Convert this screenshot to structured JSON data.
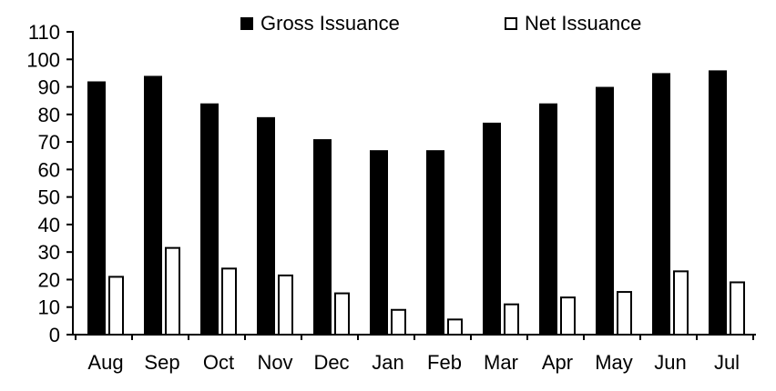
{
  "chart_data": {
    "type": "bar",
    "categories": [
      "Aug",
      "Sep",
      "Oct",
      "Nov",
      "Dec",
      "Jan",
      "Feb",
      "Mar",
      "Apr",
      "May",
      "Jun",
      "Jul"
    ],
    "series": [
      {
        "name": "Gross Issuance",
        "values": [
          92,
          94,
          84,
          79,
          71,
          67,
          67,
          77,
          84,
          90,
          95,
          96
        ],
        "fill": "#000000",
        "stroke": "#000000"
      },
      {
        "name": "Net Issuance",
        "values": [
          21,
          31.5,
          24,
          21.5,
          15,
          9,
          5.5,
          11,
          13.5,
          15.5,
          23,
          19
        ],
        "fill": "#ffffff",
        "stroke": "#000000"
      }
    ],
    "title": "",
    "xlabel": "",
    "ylabel": "",
    "ylim": [
      0,
      110
    ],
    "ytick_step": 10,
    "yticks": [
      0,
      10,
      20,
      30,
      40,
      50,
      60,
      70,
      80,
      90,
      100,
      110
    ],
    "grid": false,
    "legend_position": "top-inside",
    "axis_color": "#000000",
    "text_color": "#000000",
    "background_color": "#ffffff"
  }
}
